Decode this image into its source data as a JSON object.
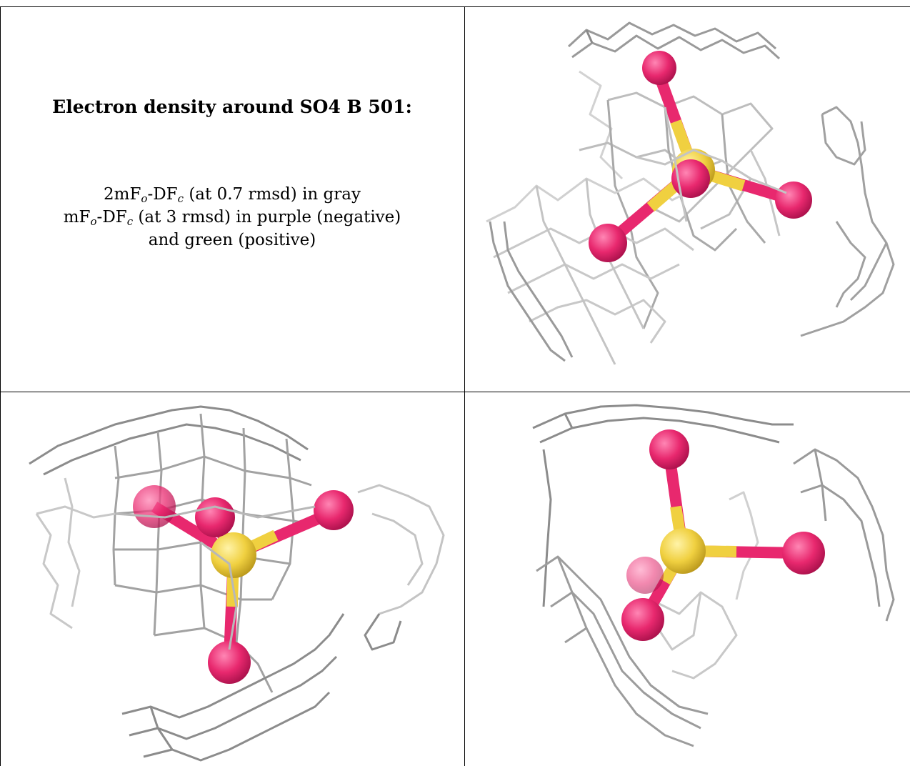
{
  "info": {
    "title": "Electron density around SO4 B 501:",
    "legend_lines": [
      {
        "a": "2mF",
        "a_sub": "o",
        "b": "-DF",
        "b_sub": "c",
        "rest": " (at 0.7 rmsd) in gray"
      },
      {
        "a": "mF",
        "a_sub": "o",
        "b": "-DF",
        "b_sub": "c",
        "rest": " (at 3 rmsd) in purple (negative)"
      },
      {
        "text": "and green (positive)"
      }
    ]
  },
  "colors": {
    "mesh": "#9a9a9a",
    "mesh_light": "#d2d2d2",
    "mesh_dark": "#6e6e6e",
    "oxygen": "#e8286e",
    "sulfur": "#f0d040",
    "grid": "#000000"
  },
  "panels": [
    {
      "view": "top-right",
      "molecule": "SO4"
    },
    {
      "view": "bottom-left",
      "molecule": "SO4"
    },
    {
      "view": "bottom-right",
      "molecule": "SO4"
    }
  ]
}
